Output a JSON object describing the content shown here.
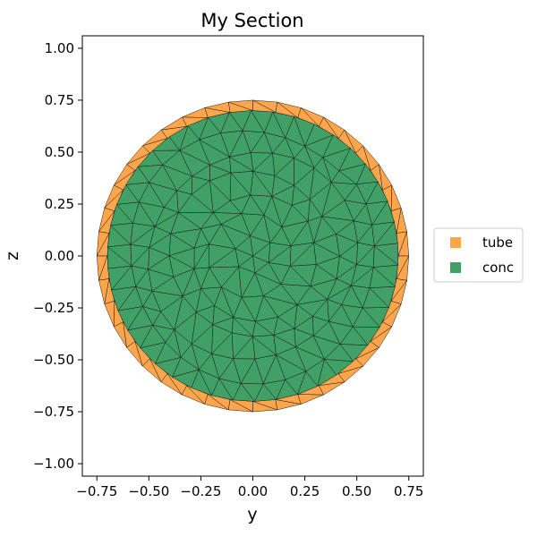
{
  "chart_data": {
    "type": "mesh-section",
    "title": "My Section",
    "xlabel": "y",
    "ylabel": "z",
    "xlim": [
      -0.82,
      0.82
    ],
    "ylim": [
      -1.06,
      1.06
    ],
    "xticks": [
      -0.75,
      -0.5,
      -0.25,
      0.0,
      0.25,
      0.5,
      0.75
    ],
    "xtick_labels": [
      "−0.75",
      "−0.50",
      "−0.25",
      "0.00",
      "0.25",
      "0.50",
      "0.75"
    ],
    "yticks": [
      1.0,
      0.75,
      0.5,
      0.25,
      0.0,
      -0.25,
      -0.5,
      -0.75,
      -1.0
    ],
    "ytick_labels": [
      "1.00",
      "0.75",
      "0.50",
      "0.25",
      "0.00",
      "−0.25",
      "−0.50",
      "−0.75",
      "−1.00"
    ],
    "regions": [
      {
        "name": "tube",
        "shape": "annulus",
        "outer_radius": 0.75,
        "inner_radius": 0.7,
        "color": "#ffa64d"
      },
      {
        "name": "conc",
        "shape": "disk",
        "radius": 0.7,
        "color": "#40a066"
      }
    ],
    "mesh_line_color": "#1a1a1a",
    "legend_position": "right-outside"
  }
}
